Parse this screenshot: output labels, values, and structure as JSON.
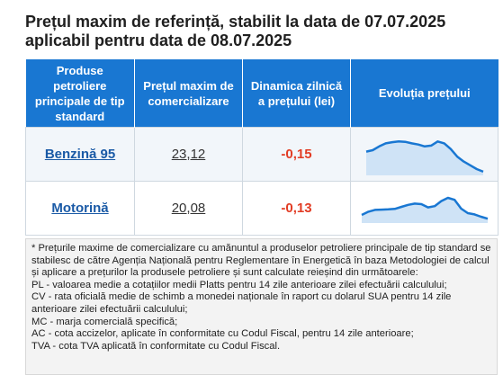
{
  "title": "Prețul maxim de referință, stabilit la data de 07.07.2025 aplicabil pentru data de 08.07.2025",
  "table": {
    "headers": [
      "Produse petroliere principale de tip standard",
      "Prețul maxim de comercializare",
      "Dinamica zilnică a prețului (lei)",
      "Evoluția prețului"
    ],
    "rows": [
      {
        "product": "Benzină 95",
        "price": "23,12",
        "change": "-0,15",
        "trend": [
          0.58,
          0.62,
          0.72,
          0.8,
          0.83,
          0.85,
          0.84,
          0.8,
          0.77,
          0.72,
          0.74,
          0.85,
          0.8,
          0.65,
          0.45,
          0.32,
          0.22,
          0.12,
          0.05
        ]
      },
      {
        "product": "Motorină",
        "price": "20,08",
        "change": "-0,13",
        "trend": [
          0.25,
          0.38,
          0.45,
          0.46,
          0.47,
          0.49,
          0.57,
          0.65,
          0.7,
          0.68,
          0.55,
          0.6,
          0.8,
          0.93,
          0.85,
          0.5,
          0.32,
          0.27,
          0.18,
          0.1
        ]
      }
    ],
    "accent_color": "#1977d2",
    "negative_color": "#e23c24"
  },
  "notes": [
    "* Prețurile maxime de comercializare cu amănuntul a produselor petroliere principale de tip standard se stabilesc de către Agenția Națională pentru Reglementare în Energetică în baza Metodologiei de calcul și aplicare a prețurilor la produsele petroliere și sunt calculate reieșind din următoarele:",
    "PL - valoarea medie a cotațiilor medii Platts pentru 14 zile anterioare zilei efectuării calculului;",
    "CV - rata oficială medie de schimb a monedei naționale în raport cu dolarul SUA pentru 14 zile anterioare zilei efectuării calculului;",
    "MC - marja comercială specifică;",
    "AC - cota accizelor, aplicate în conformitate cu Codul Fiscal, pentru 14 zile anterioare;",
    "TVA - cota TVA aplicată în conformitate cu Codul Fiscal."
  ]
}
